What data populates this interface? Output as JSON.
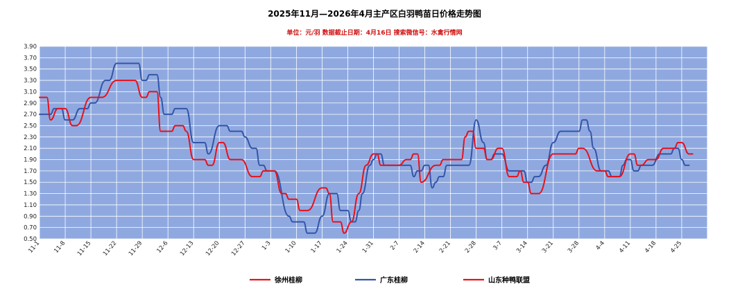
{
  "chart_data": {
    "type": "line",
    "title": "2025年11月—2026年4月主产区白羽鸭苗日价格走势图",
    "subtitle": "单位：元/羽    数据截止日期：4月16日    搜索微信号：水禽行情网",
    "ylim": [
      0.5,
      3.9
    ],
    "yticks": [
      "0.50",
      "0.70",
      "0.90",
      "1.10",
      "1.30",
      "1.50",
      "1.70",
      "1.90",
      "2.10",
      "2.30",
      "2.50",
      "2.70",
      "2.90",
      "3.10",
      "3.30",
      "3.50",
      "3.70",
      "3.90"
    ],
    "x_labels": [
      "11-1",
      "11-8",
      "11-15",
      "11-22",
      "11-29",
      "12-6",
      "12-13",
      "12-20",
      "12-27",
      "1-3",
      "1-10",
      "1-17",
      "1-24",
      "1-31",
      "2-7",
      "2-14",
      "2-21",
      "2-28",
      "3-7",
      "3-14",
      "3-21",
      "3-28",
      "4-4",
      "4-11",
      "4-18",
      "4-25"
    ],
    "x_unit": "day index from 11-1",
    "xlim": [
      0,
      182
    ],
    "grid": true,
    "legend_position": "bottom",
    "colors": {
      "plot_bg": "#8FA9E0",
      "grid": "#FFFFFF",
      "xuzhou": "#E8101A",
      "guangdong": "#3454A8",
      "shandong": "#E8101A",
      "subtitle": "#D01010"
    },
    "series": [
      {
        "name": "徐州桂柳",
        "key": "xuzhou",
        "points": [
          [
            0,
            3.0
          ],
          [
            2,
            3.0
          ],
          [
            3,
            2.6
          ],
          [
            5,
            2.8
          ],
          [
            7,
            2.8
          ],
          [
            9,
            2.5
          ],
          [
            10,
            2.5
          ],
          [
            14,
            3.0
          ],
          [
            17,
            3.0
          ],
          [
            21,
            3.3
          ],
          [
            26,
            3.3
          ],
          [
            28,
            3.0
          ],
          [
            29,
            3.0
          ],
          [
            30,
            3.1
          ],
          [
            32,
            3.1
          ],
          [
            33,
            2.4
          ],
          [
            36,
            2.4
          ],
          [
            37,
            2.5
          ],
          [
            39,
            2.5
          ],
          [
            40,
            2.4
          ],
          [
            42,
            1.9
          ],
          [
            45,
            1.9
          ],
          [
            46,
            1.8
          ],
          [
            47,
            1.8
          ],
          [
            49,
            2.2
          ],
          [
            50,
            2.2
          ],
          [
            52,
            1.9
          ],
          [
            55,
            1.9
          ],
          [
            58,
            1.6
          ],
          [
            60,
            1.6
          ],
          [
            61,
            1.7
          ],
          [
            64,
            1.7
          ],
          [
            66,
            1.3
          ],
          [
            67,
            1.3
          ],
          [
            68,
            1.2
          ],
          [
            70,
            1.2
          ],
          [
            71,
            1.0
          ],
          [
            73,
            1.0
          ],
          [
            77,
            1.4
          ],
          [
            78,
            1.4
          ],
          [
            79,
            1.3
          ],
          [
            80,
            0.8
          ],
          [
            82,
            0.8
          ],
          [
            83,
            0.6
          ],
          [
            85,
            0.8
          ],
          [
            87,
            1.3
          ],
          [
            89,
            1.8
          ],
          [
            91,
            2.0
          ],
          [
            92,
            2.0
          ],
          [
            93,
            1.8
          ],
          [
            98,
            1.8
          ],
          [
            100,
            1.9
          ],
          [
            101,
            1.9
          ],
          [
            102,
            2.0
          ],
          [
            103,
            2.0
          ],
          [
            104,
            1.5
          ],
          [
            108,
            1.8
          ],
          [
            109,
            1.8
          ],
          [
            110,
            1.9
          ],
          [
            115,
            1.9
          ],
          [
            116,
            2.3
          ],
          [
            117,
            2.4
          ],
          [
            118,
            2.4
          ],
          [
            119,
            2.1
          ],
          [
            121,
            2.1
          ],
          [
            122,
            1.9
          ],
          [
            123,
            1.9
          ],
          [
            125,
            2.1
          ],
          [
            126,
            2.1
          ],
          [
            128,
            1.6
          ],
          [
            130,
            1.6
          ],
          [
            131,
            1.7
          ],
          [
            132,
            1.5
          ],
          [
            133,
            1.5
          ],
          [
            134,
            1.3
          ],
          [
            136,
            1.3
          ],
          [
            140,
            2.0
          ],
          [
            146,
            2.0
          ],
          [
            147,
            2.1
          ],
          [
            148,
            2.1
          ],
          [
            152,
            1.7
          ],
          [
            154,
            1.7
          ],
          [
            155,
            1.6
          ],
          [
            158,
            1.6
          ],
          [
            161,
            2.0
          ],
          [
            162,
            2.0
          ],
          [
            163,
            1.8
          ],
          [
            164,
            1.8
          ],
          [
            166,
            1.9
          ],
          [
            168,
            1.9
          ],
          [
            170,
            2.1
          ],
          [
            173,
            2.1
          ],
          [
            174,
            2.2
          ],
          [
            175,
            2.2
          ],
          [
            177,
            2.0
          ],
          [
            178,
            2.0
          ]
        ]
      },
      {
        "name": "广东桂柳",
        "key": "guangdong",
        "points": [
          [
            0,
            2.7
          ],
          [
            3,
            2.7
          ],
          [
            4,
            2.8
          ],
          [
            6,
            2.8
          ],
          [
            7,
            2.6
          ],
          [
            9,
            2.6
          ],
          [
            11,
            2.8
          ],
          [
            13,
            2.8
          ],
          [
            14,
            2.9
          ],
          [
            15,
            2.9
          ],
          [
            18,
            3.3
          ],
          [
            19,
            3.3
          ],
          [
            21,
            3.6
          ],
          [
            27,
            3.6
          ],
          [
            28,
            3.3
          ],
          [
            29,
            3.3
          ],
          [
            30,
            3.4
          ],
          [
            32,
            3.4
          ],
          [
            33,
            3.0
          ],
          [
            34,
            2.7
          ],
          [
            36,
            2.7
          ],
          [
            37,
            2.8
          ],
          [
            40,
            2.8
          ],
          [
            42,
            2.2
          ],
          [
            45,
            2.2
          ],
          [
            46,
            2.0
          ],
          [
            49,
            2.5
          ],
          [
            51,
            2.5
          ],
          [
            52,
            2.4
          ],
          [
            55,
            2.4
          ],
          [
            56,
            2.3
          ],
          [
            58,
            2.1
          ],
          [
            59,
            2.1
          ],
          [
            60,
            1.8
          ],
          [
            61,
            1.8
          ],
          [
            62,
            1.7
          ],
          [
            64,
            1.7
          ],
          [
            68,
            0.9
          ],
          [
            69,
            0.8
          ],
          [
            72,
            0.8
          ],
          [
            73,
            0.6
          ],
          [
            75,
            0.6
          ],
          [
            77,
            0.9
          ],
          [
            79,
            1.3
          ],
          [
            81,
            1.3
          ],
          [
            82,
            1.0
          ],
          [
            84,
            1.0
          ],
          [
            85,
            0.8
          ],
          [
            86,
            0.8
          ],
          [
            87,
            1.0
          ],
          [
            88,
            1.3
          ],
          [
            90,
            1.8
          ],
          [
            91,
            1.9
          ],
          [
            92,
            2.0
          ],
          [
            93,
            2.0
          ],
          [
            94,
            1.8
          ],
          [
            101,
            1.8
          ],
          [
            102,
            1.6
          ],
          [
            103,
            1.7
          ],
          [
            104,
            1.7
          ],
          [
            105,
            1.8
          ],
          [
            106,
            1.8
          ],
          [
            107,
            1.4
          ],
          [
            108,
            1.5
          ],
          [
            109,
            1.6
          ],
          [
            110,
            1.6
          ],
          [
            111,
            1.8
          ],
          [
            117,
            1.8
          ],
          [
            119,
            2.6
          ],
          [
            121,
            2.2
          ],
          [
            122,
            1.9
          ],
          [
            123,
            1.9
          ],
          [
            124,
            2.0
          ],
          [
            126,
            2.0
          ],
          [
            128,
            1.7
          ],
          [
            132,
            1.7
          ],
          [
            133,
            1.5
          ],
          [
            134,
            1.5
          ],
          [
            135,
            1.6
          ],
          [
            136,
            1.6
          ],
          [
            138,
            1.8
          ],
          [
            140,
            2.2
          ],
          [
            142,
            2.4
          ],
          [
            147,
            2.4
          ],
          [
            148,
            2.6
          ],
          [
            149,
            2.6
          ],
          [
            150,
            2.4
          ],
          [
            151,
            2.1
          ],
          [
            153,
            1.7
          ],
          [
            155,
            1.7
          ],
          [
            156,
            1.6
          ],
          [
            158,
            1.6
          ],
          [
            159,
            1.8
          ],
          [
            160,
            1.9
          ],
          [
            161,
            1.9
          ],
          [
            162,
            1.7
          ],
          [
            163,
            1.7
          ],
          [
            164,
            1.8
          ],
          [
            167,
            1.8
          ],
          [
            169,
            2.0
          ],
          [
            172,
            2.0
          ],
          [
            173,
            2.1
          ],
          [
            174,
            2.1
          ],
          [
            175,
            1.9
          ],
          [
            176,
            1.8
          ],
          [
            177,
            1.8
          ]
        ]
      },
      {
        "name": "山东种鸭联盟",
        "key": "shandong",
        "points": []
      }
    ]
  }
}
